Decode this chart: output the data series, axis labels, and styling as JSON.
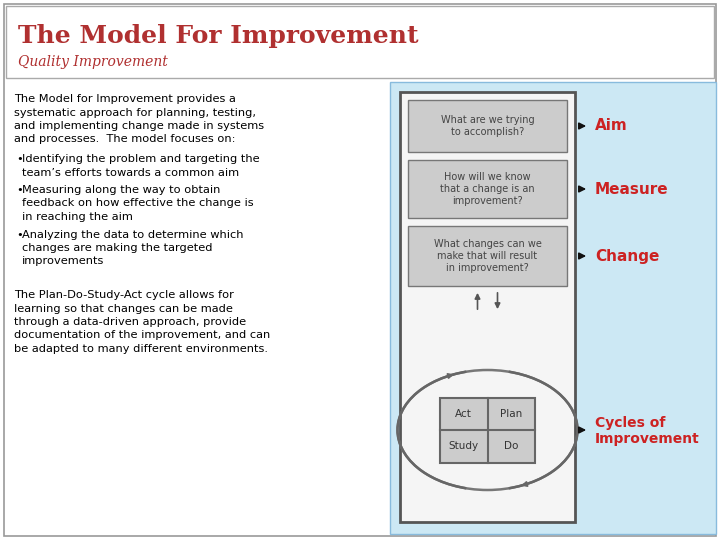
{
  "title": "The Model For Improvement",
  "subtitle": "Quality Improvement",
  "title_color": "#b03030",
  "subtitle_color": "#b03030",
  "bg_color": "#ffffff",
  "right_panel_bg": "#cce8f4",
  "diagram_border_color": "#555555",
  "box_bg": "#cccccc",
  "box_text_color": "#444444",
  "arrow_color": "#222222",
  "label_color": "#cc2222",
  "pdsa_quadrant_bg": "#cccccc",
  "body_text_line1": "The Model for Improvement provides a",
  "body_text_line2": "systematic approach for planning, testing,",
  "body_text_line3": "and implementing change made in systems",
  "body_text_line4": "and processes.  The model focuses on:",
  "bullet1_line1": "Identifying the problem and targeting the",
  "bullet1_line2": "team’s efforts towards a common aim",
  "bullet2_line1": "Measuring along the way to obtain",
  "bullet2_line2": "feedback on how effective the change is",
  "bullet2_line3": "in reaching the aim",
  "bullet3_line1": "Analyzing the data to determine which",
  "bullet3_line2": "changes are making the targeted",
  "bullet3_line3": "improvements",
  "footer_line1": "The Plan-Do-Study-Act cycle allows for",
  "footer_line2": "learning so that changes can be made",
  "footer_line3": "through a data-driven approach, provide",
  "footer_line4": "documentation of the improvement, and can",
  "footer_line5": "be adapted to many different environments.",
  "box1_text": "What are we trying\nto accomplish?",
  "box2_text": "How will we know\nthat a change is an\nimprovement?",
  "box3_text": "What changes can we\nmake that will result\nin improvement?",
  "label_aim": "Aim",
  "label_measure": "Measure",
  "label_change": "Change",
  "label_cycles_1": "Cycles of",
  "label_cycles_2": "Improvement",
  "pdsa_act": "Act",
  "pdsa_plan": "Plan",
  "pdsa_study": "Study",
  "pdsa_do": "Do"
}
